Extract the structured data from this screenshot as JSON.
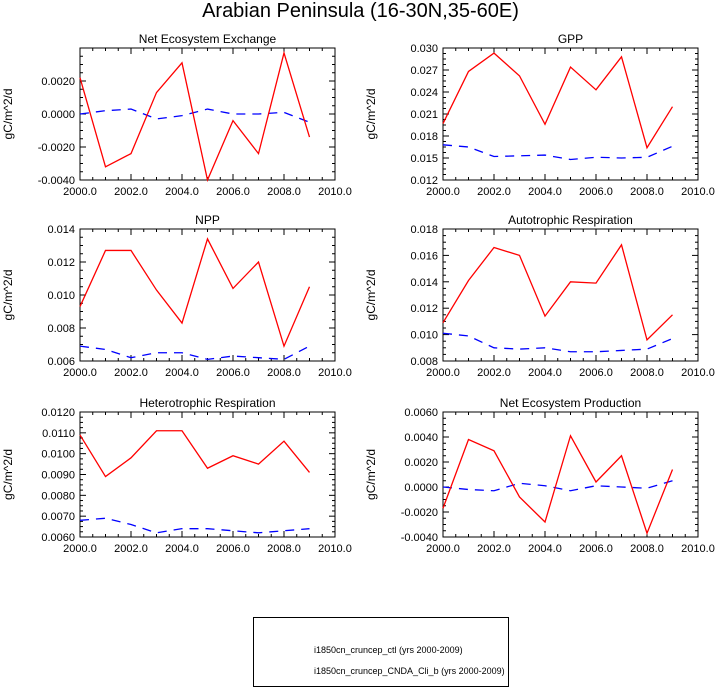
{
  "title": "Arabian Peninsula (16-30N,35-60E)",
  "colors": {
    "ctl": "#0000ff",
    "cnda": "#ff0000"
  },
  "legend": [
    {
      "label": "i1850cn_cruncep_ctl (yrs 2000-2009)",
      "style": "dashed",
      "color": "#0000ff"
    },
    {
      "label": "i1850cn_cruncep_CNDA_Cli_b (yrs 2000-2009)",
      "style": "solid",
      "color": "#ff0000"
    }
  ],
  "chart_data": [
    {
      "type": "line",
      "title": "Net Ecosystem Exchange",
      "ylabel": "gC/m^2/d",
      "xlim": [
        2000,
        2010
      ],
      "ylim": [
        -0.004,
        0.004
      ],
      "xticks": [
        "2000.0",
        "2002.0",
        "2004.0",
        "2006.0",
        "2008.0",
        "2010.0"
      ],
      "yticks": [
        "-0.0040",
        "-0.0020",
        "0.0000",
        "0.0020"
      ],
      "ytick_values": [
        -0.004,
        -0.002,
        0.0,
        0.002
      ],
      "x": [
        2000,
        2001,
        2002,
        2003,
        2004,
        2005,
        2006,
        2007,
        2008,
        2009
      ],
      "series": [
        {
          "name": "i1850cn_cruncep_ctl (yrs 2000-2009)",
          "style": "dashed",
          "values": [
            0.0,
            0.0002,
            0.0003,
            -0.0003,
            -0.0001,
            0.0003,
            0.0,
            0.0,
            0.0001,
            -0.0005
          ]
        },
        {
          "name": "i1850cn_cruncep_CNDA_Cli_b (yrs 2000-2009)",
          "style": "solid",
          "values": [
            0.0022,
            -0.0032,
            -0.0024,
            0.0013,
            0.0031,
            -0.004,
            -0.0004,
            -0.0024,
            0.0037,
            -0.0014
          ]
        }
      ]
    },
    {
      "type": "line",
      "title": "GPP",
      "ylabel": "gC/m^2/d",
      "xlim": [
        2000,
        2010
      ],
      "ylim": [
        0.012,
        0.03
      ],
      "xticks": [
        "2000.0",
        "2002.0",
        "2004.0",
        "2006.0",
        "2008.0",
        "2010.0"
      ],
      "yticks": [
        "0.012",
        "0.015",
        "0.018",
        "0.021",
        "0.024",
        "0.027",
        "0.030"
      ],
      "ytick_values": [
        0.012,
        0.015,
        0.018,
        0.021,
        0.024,
        0.027,
        0.03
      ],
      "x": [
        2000,
        2001,
        2002,
        2003,
        2004,
        2005,
        2006,
        2007,
        2008,
        2009
      ],
      "series": [
        {
          "name": "i1850cn_cruncep_ctl (yrs 2000-2009)",
          "style": "dashed",
          "values": [
            0.0168,
            0.0165,
            0.0152,
            0.0153,
            0.0154,
            0.0148,
            0.0151,
            0.015,
            0.0151,
            0.0166
          ]
        },
        {
          "name": "i1850cn_cruncep_CNDA_Cli_b (yrs 2000-2009)",
          "style": "solid",
          "values": [
            0.0197,
            0.0268,
            0.0293,
            0.0262,
            0.0196,
            0.0274,
            0.0243,
            0.0288,
            0.0164,
            0.022
          ]
        }
      ]
    },
    {
      "type": "line",
      "title": "NPP",
      "ylabel": "gC/m^2/d",
      "xlim": [
        2000,
        2010
      ],
      "ylim": [
        0.006,
        0.014
      ],
      "xticks": [
        "2000.0",
        "2002.0",
        "2004.0",
        "2006.0",
        "2008.0",
        "2010.0"
      ],
      "yticks": [
        "0.006",
        "0.008",
        "0.010",
        "0.012",
        "0.014"
      ],
      "ytick_values": [
        0.006,
        0.008,
        0.01,
        0.012,
        0.014
      ],
      "x": [
        2000,
        2001,
        2002,
        2003,
        2004,
        2005,
        2006,
        2007,
        2008,
        2009
      ],
      "series": [
        {
          "name": "i1850cn_cruncep_ctl (yrs 2000-2009)",
          "style": "dashed",
          "values": [
            0.0069,
            0.0067,
            0.0062,
            0.0065,
            0.0065,
            0.0061,
            0.0063,
            0.0062,
            0.0061,
            0.0069
          ]
        },
        {
          "name": "i1850cn_cruncep_CNDA_Cli_b (yrs 2000-2009)",
          "style": "solid",
          "values": [
            0.0093,
            0.0127,
            0.0127,
            0.0103,
            0.0083,
            0.0134,
            0.0104,
            0.012,
            0.0069,
            0.0105
          ]
        }
      ]
    },
    {
      "type": "line",
      "title": "Autotrophic Respiration",
      "ylabel": "gC/m^2/d",
      "xlim": [
        2000,
        2010
      ],
      "ylim": [
        0.008,
        0.018
      ],
      "xticks": [
        "2000.0",
        "2002.0",
        "2004.0",
        "2006.0",
        "2008.0",
        "2010.0"
      ],
      "yticks": [
        "0.008",
        "0.010",
        "0.012",
        "0.014",
        "0.016",
        "0.018"
      ],
      "ytick_values": [
        0.008,
        0.01,
        0.012,
        0.014,
        0.016,
        0.018
      ],
      "x": [
        2000,
        2001,
        2002,
        2003,
        2004,
        2005,
        2006,
        2007,
        2008,
        2009
      ],
      "series": [
        {
          "name": "i1850cn_cruncep_ctl (yrs 2000-2009)",
          "style": "dashed",
          "values": [
            0.0101,
            0.0099,
            0.009,
            0.0089,
            0.009,
            0.0087,
            0.0087,
            0.0088,
            0.0089,
            0.0097
          ]
        },
        {
          "name": "i1850cn_cruncep_CNDA_Cli_b (yrs 2000-2009)",
          "style": "solid",
          "values": [
            0.0109,
            0.0141,
            0.0166,
            0.016,
            0.0114,
            0.014,
            0.0139,
            0.0168,
            0.0096,
            0.0115
          ]
        }
      ]
    },
    {
      "type": "line",
      "title": "Heterotrophic Respiration",
      "ylabel": "gC/m^2/d",
      "xlim": [
        2000,
        2010
      ],
      "ylim": [
        0.006,
        0.012
      ],
      "xticks": [
        "2000.0",
        "2002.0",
        "2004.0",
        "2006.0",
        "2008.0",
        "2010.0"
      ],
      "yticks": [
        "0.0060",
        "0.0070",
        "0.0080",
        "0.0090",
        "0.0100",
        "0.0110",
        "0.0120"
      ],
      "ytick_values": [
        0.006,
        0.007,
        0.008,
        0.009,
        0.01,
        0.011,
        0.012
      ],
      "x": [
        2000,
        2001,
        2002,
        2003,
        2004,
        2005,
        2006,
        2007,
        2008,
        2009
      ],
      "series": [
        {
          "name": "i1850cn_cruncep_ctl (yrs 2000-2009)",
          "style": "dashed",
          "values": [
            0.0068,
            0.0069,
            0.0066,
            0.0062,
            0.0064,
            0.0064,
            0.0063,
            0.0062,
            0.0063,
            0.0064
          ]
        },
        {
          "name": "i1850cn_cruncep_CNDA_Cli_b (yrs 2000-2009)",
          "style": "solid",
          "values": [
            0.0109,
            0.0089,
            0.0098,
            0.0111,
            0.0111,
            0.0093,
            0.0099,
            0.0095,
            0.0106,
            0.0091
          ]
        }
      ]
    },
    {
      "type": "line",
      "title": "Net Ecosystem Production",
      "ylabel": "gC/m^2/d",
      "xlim": [
        2000,
        2010
      ],
      "ylim": [
        -0.004,
        0.006
      ],
      "xticks": [
        "2000.0",
        "2002.0",
        "2004.0",
        "2006.0",
        "2008.0",
        "2010.0"
      ],
      "yticks": [
        "-0.0040",
        "-0.0020",
        "0.0000",
        "0.0020",
        "0.0040",
        "0.0060"
      ],
      "ytick_values": [
        -0.004,
        -0.002,
        0.0,
        0.002,
        0.004,
        0.006
      ],
      "x": [
        2000,
        2001,
        2002,
        2003,
        2004,
        2005,
        2006,
        2007,
        2008,
        2009
      ],
      "series": [
        {
          "name": "i1850cn_cruncep_ctl (yrs 2000-2009)",
          "style": "dashed",
          "values": [
            0.0,
            -0.0002,
            -0.0003,
            0.0003,
            0.0001,
            -0.0003,
            0.0001,
            0.0,
            -0.0001,
            0.0005
          ]
        },
        {
          "name": "i1850cn_cruncep_CNDA_Cli_b (yrs 2000-2009)",
          "style": "solid",
          "values": [
            -0.0017,
            0.0038,
            0.0029,
            -0.0008,
            -0.0028,
            0.0041,
            0.0004,
            0.0025,
            -0.0037,
            0.0014
          ]
        }
      ]
    }
  ]
}
